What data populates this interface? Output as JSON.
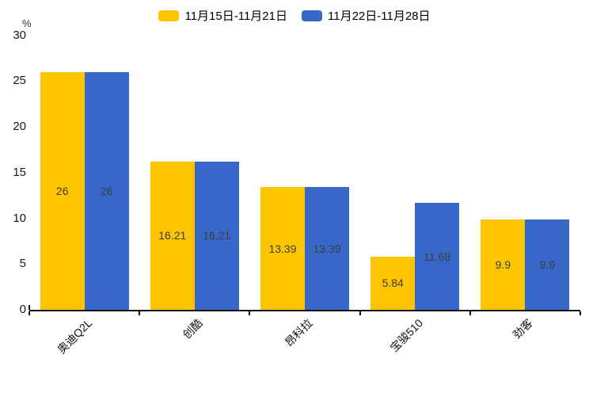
{
  "legend": {
    "items": [
      {
        "label": "11月15日-11月21日",
        "color": "#FDC500"
      },
      {
        "label": "11月22日-11月28日",
        "color": "#3667C9"
      }
    ]
  },
  "chart_data": {
    "type": "bar",
    "title": "",
    "categories": [
      "奥迪Q2L",
      "创酷",
      "昂科拉",
      "宝骏510",
      "劲客"
    ],
    "series": [
      {
        "name": "11月15日-11月21日",
        "color": "#FDC500",
        "values": [
          26,
          16.21,
          13.39,
          5.84,
          9.9
        ],
        "labels": [
          "26",
          "16.21",
          "13.39",
          "5.84",
          "9.9"
        ]
      },
      {
        "name": "11月22日-11月28日",
        "color": "#3667C9",
        "values": [
          26,
          16.21,
          13.39,
          11.68,
          9.9
        ],
        "labels": [
          "26",
          "16.21",
          "13.39",
          "11.68",
          "9.9"
        ]
      }
    ],
    "ylabel": "%",
    "yticks": [
      0,
      5,
      10,
      15,
      20,
      25,
      30
    ],
    "ylim": [
      0,
      30
    ],
    "grid": false,
    "legend_position": "top",
    "value_labels": true,
    "value_label_position": "inside-center",
    "xlabel_rotation_deg": -45,
    "colors": {
      "axis": "#111111",
      "value_label_text": "#3d3d3d",
      "tick_label_text": "#1a1a1a"
    }
  }
}
